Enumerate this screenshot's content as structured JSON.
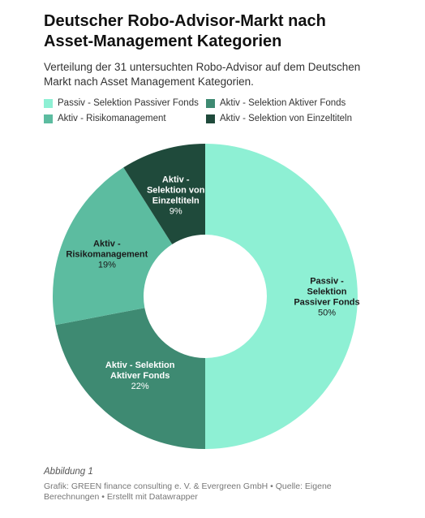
{
  "header": {
    "title_line1": "Deutscher Robo-Advisor-Markt nach",
    "title_line2": "Asset-Management Kategorien",
    "subtitle_line1": "Verteilung der 31 untersuchten Robo-Advisor auf dem Deutschen",
    "subtitle_line2": "Markt nach Asset Management Kategorien."
  },
  "legend": {
    "items": [
      {
        "label": "Passiv - Selektion Passiver Fonds",
        "color": "#8ef0d4"
      },
      {
        "label": "Aktiv - Selektion Aktiver Fonds",
        "color": "#3e8a72"
      },
      {
        "label": "Aktiv - Risikomanagement",
        "color": "#5cbca0"
      },
      {
        "label": "Aktiv - Selektion von Einzeltiteln",
        "color": "#1f4a3b"
      }
    ]
  },
  "chart_data": {
    "type": "pie",
    "donut": true,
    "legend_position": "top",
    "slices": [
      {
        "name": "Passiv - Selektion Passiver Fonds",
        "label_lines": [
          "Passiv -",
          "Selektion",
          "Passiver Fonds"
        ],
        "value": 50,
        "value_label": "50%",
        "color": "#8ef0d4"
      },
      {
        "name": "Aktiv - Selektion Aktiver Fonds",
        "label_lines": [
          "Aktiv - Selektion",
          "Aktiver Fonds"
        ],
        "value": 22,
        "value_label": "22%",
        "color": "#3e8a72"
      },
      {
        "name": "Aktiv - Risikomanagement",
        "label_lines": [
          "Aktiv -",
          "Risikomanagement"
        ],
        "value": 19,
        "value_label": "19%",
        "color": "#5cbca0"
      },
      {
        "name": "Aktiv - Selektion von Einzeltiteln",
        "label_lines": [
          "Aktiv -",
          "Selektion von",
          "Einzeltiteln"
        ],
        "value": 9,
        "value_label": "9%",
        "color": "#1f4a3b"
      }
    ]
  },
  "footer": {
    "caption": "Abbildung 1",
    "source_line1": "Grafik: GREEN finance consulting e. V. & Evergreen GmbH • Quelle: Eigene",
    "source_line2": "Berechnungen • Erstellt mit Datawrapper"
  }
}
